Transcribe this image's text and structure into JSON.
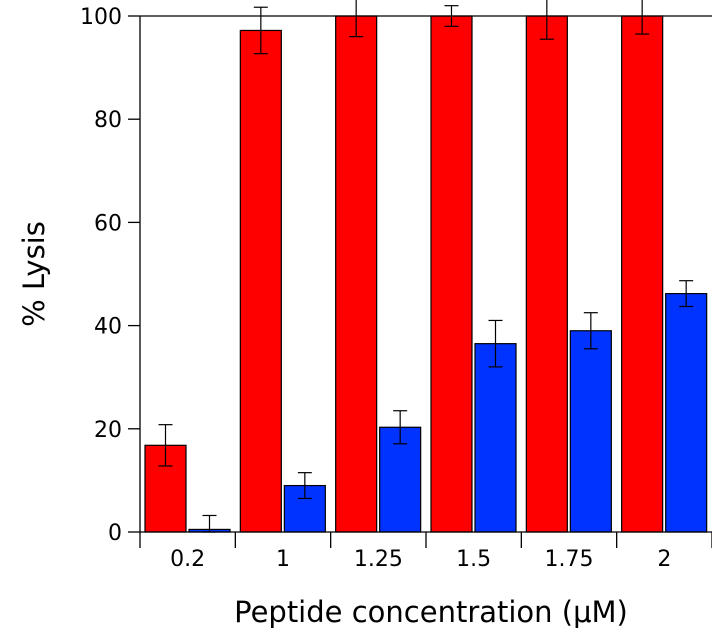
{
  "chart_data": {
    "type": "bar",
    "title": "",
    "xlabel": "Peptide concentration (μM)",
    "ylabel": "% Lysis",
    "ylim": [
      0,
      100
    ],
    "yticks": [
      0,
      20,
      40,
      60,
      80,
      100
    ],
    "categories": [
      "0.2",
      "1",
      "1.25",
      "1.5",
      "1.75",
      "2"
    ],
    "grid": false,
    "legend": "none",
    "series": [
      {
        "color": "#ff0000",
        "values": [
          16.8,
          97.2,
          100,
          100,
          100,
          100
        ],
        "errors": [
          4.0,
          4.5,
          4.0,
          2.0,
          4.5,
          3.5
        ]
      },
      {
        "color": "#0033ff",
        "values": [
          0.5,
          9.0,
          20.3,
          36.5,
          39.0,
          46.2
        ],
        "errors": [
          2.7,
          2.5,
          3.2,
          4.5,
          3.5,
          2.5
        ]
      }
    ]
  }
}
